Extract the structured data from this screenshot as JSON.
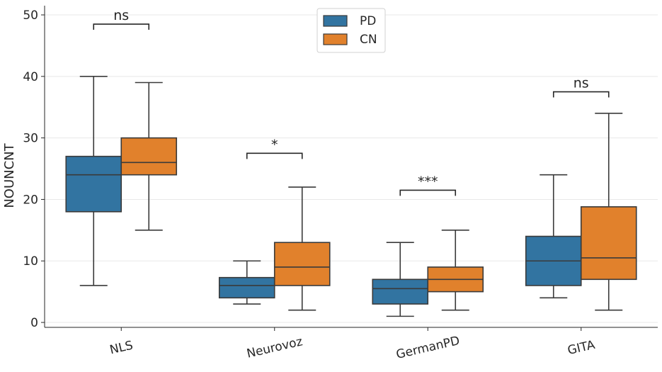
{
  "chart_data": {
    "type": "boxplot",
    "ylabel": "NOUNCNT",
    "xlabel": "",
    "ylim": [
      -0.8,
      51.5
    ],
    "yticks": [
      0,
      10,
      20,
      30,
      40,
      50
    ],
    "grid": "horizontal",
    "legend_position": "top-center",
    "categories": [
      "NLS",
      "Neurovoz",
      "GermanPD",
      "GITA"
    ],
    "series": [
      {
        "name": "PD",
        "color": "#3274a1",
        "boxes": [
          {
            "whisker_low": 6,
            "q1": 18,
            "median": 24,
            "q3": 27,
            "whisker_high": 40
          },
          {
            "whisker_low": 3,
            "q1": 4,
            "median": 6,
            "q3": 7.3,
            "whisker_high": 10
          },
          {
            "whisker_low": 1,
            "q1": 3,
            "median": 5.5,
            "q3": 7,
            "whisker_high": 13
          },
          {
            "whisker_low": 4,
            "q1": 6,
            "median": 10,
            "q3": 14,
            "whisker_high": 24
          }
        ]
      },
      {
        "name": "CN",
        "color": "#e1812c",
        "boxes": [
          {
            "whisker_low": 15,
            "q1": 24,
            "median": 26,
            "q3": 30,
            "whisker_high": 39
          },
          {
            "whisker_low": 2,
            "q1": 6,
            "median": 9,
            "q3": 13,
            "whisker_high": 22
          },
          {
            "whisker_low": 2,
            "q1": 5,
            "median": 7,
            "q3": 9,
            "whisker_high": 15
          },
          {
            "whisker_low": 2,
            "q1": 7,
            "median": 10.5,
            "q3": 18.8,
            "whisker_high": 34
          }
        ]
      }
    ],
    "annotations": [
      {
        "category": "NLS",
        "text": "ns",
        "y": 48.5
      },
      {
        "category": "Neurovoz",
        "text": "*",
        "y": 27.5
      },
      {
        "category": "GermanPD",
        "text": "***",
        "y": 21.5
      },
      {
        "category": "GITA",
        "text": "ns",
        "y": 37.5
      }
    ]
  }
}
